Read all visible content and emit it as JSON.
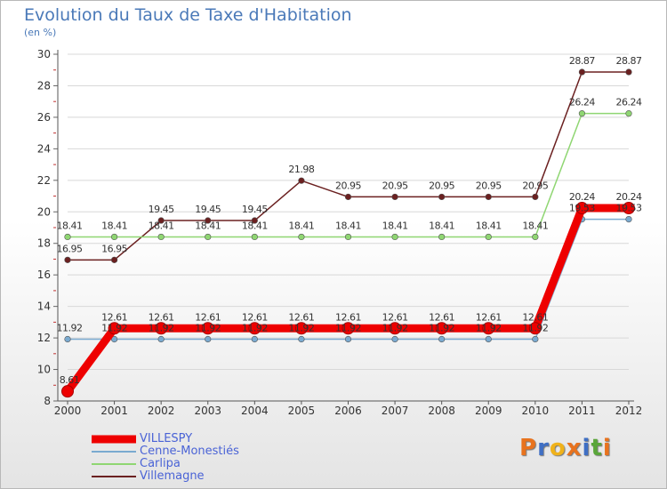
{
  "chart_data": {
    "type": "line",
    "title": "Evolution du Taux de Taxe d'Habitation",
    "subtitle": "(en %)",
    "xlabel": "",
    "ylabel": "",
    "ylim": [
      8,
      30
    ],
    "yticks": [
      "8",
      "10",
      "12",
      "14",
      "16",
      "18",
      "20",
      "22",
      "24",
      "26",
      "28",
      "30"
    ],
    "categories": [
      "2000",
      "2001",
      "2002",
      "2003",
      "2004",
      "2005",
      "2006",
      "2007",
      "2008",
      "2009",
      "2010",
      "2011",
      "2012"
    ],
    "legend_position": "bottom-left",
    "series": [
      {
        "name": "Villemagne",
        "color": "#6b2020",
        "values": [
          16.95,
          16.95,
          19.45,
          19.45,
          19.45,
          21.98,
          20.95,
          20.95,
          20.95,
          20.95,
          20.95,
          28.87,
          28.87
        ],
        "labels": [
          "16.95",
          "16.95",
          "19.45",
          "19.45",
          "19.45",
          "21.98",
          "20.95",
          "20.95",
          "20.95",
          "20.95",
          "20.95",
          "28.87",
          "28.87"
        ]
      },
      {
        "name": "Carlipa",
        "color": "#8fd672",
        "values": [
          18.41,
          18.41,
          18.41,
          18.41,
          18.41,
          18.41,
          18.41,
          18.41,
          18.41,
          18.41,
          18.41,
          26.24,
          26.24
        ],
        "labels": [
          "18.41",
          "18.41",
          "18.41",
          "18.41",
          "18.41",
          "18.41",
          "18.41",
          "18.41",
          "18.41",
          "18.41",
          "18.41",
          "26.24",
          "26.24"
        ]
      },
      {
        "name": "Cenne-Monestiés",
        "color": "#7aaad0",
        "values": [
          11.92,
          11.92,
          11.92,
          11.92,
          11.92,
          11.92,
          11.92,
          11.92,
          11.92,
          11.92,
          11.92,
          19.53,
          19.53
        ],
        "labels": [
          "11.92",
          "11.92",
          "11.92",
          "11.92",
          "11.92",
          "11.92",
          "11.92",
          "11.92",
          "11.92",
          "11.92",
          "11.92",
          "19.53",
          "19.53"
        ]
      },
      {
        "name": "VILLESPY",
        "color": "#ee0000",
        "values": [
          8.61,
          12.61,
          12.61,
          12.61,
          12.61,
          12.61,
          12.61,
          12.61,
          12.61,
          12.61,
          12.61,
          20.24,
          20.24
        ],
        "labels": [
          "8.61",
          "12.61",
          "12.61",
          "12.61",
          "12.61",
          "12.61",
          "12.61",
          "12.61",
          "12.61",
          "12.61",
          "12.61",
          "20.24",
          "20.24"
        ]
      }
    ],
    "legend": [
      "VILLESPY",
      "Cenne-Monestiés",
      "Carlipa",
      "Villemagne"
    ]
  },
  "brand": {
    "text": "Proxiti",
    "letters": [
      "P",
      "r",
      "o",
      "x",
      "i",
      "t",
      "i"
    ],
    "colors": [
      "#e8731e",
      "#3f6fc4",
      "#f0b21a",
      "#e8731e",
      "#3f6fc4",
      "#5aa63a",
      "#e8731e"
    ]
  }
}
